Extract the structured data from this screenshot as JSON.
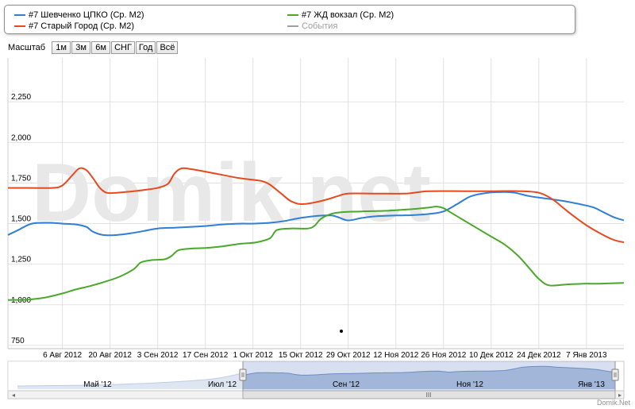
{
  "legend": {
    "items": [
      {
        "label": "#7 Шевченко ЦПКО (Ср. М2)",
        "color": "#2f7ed8"
      },
      {
        "label": "#7 Старый Город (Ср. М2)",
        "color": "#e8491d"
      },
      {
        "label": "#7 ЖД вокзал (Ср. М2)",
        "color": "#4aa82b"
      },
      {
        "label": "События",
        "color": "#a0a0a0"
      }
    ]
  },
  "zoom": {
    "label": "Масштаб",
    "buttons": [
      "1м",
      "3м",
      "6м",
      "СНГ",
      "Год",
      "Всё"
    ]
  },
  "watermark": "Domik.net",
  "credit": "Domik.Net",
  "navigator": {
    "labels": [
      "Май '12",
      "Июл '12",
      "Сен '12",
      "Ноя '12",
      "Янв '13"
    ],
    "handle_glyph": "III"
  },
  "chart_data": {
    "type": "line",
    "x_tick_labels": [
      "6 Авг 2012",
      "20 Авг 2012",
      "3 Сен 2012",
      "17 Сен 2012",
      "1 Окт 2012",
      "15 Окт 2012",
      "29 Окт 2012",
      "12 Ноя 2012",
      "26 Ноя 2012",
      "10 Дек 2012",
      "24 Дек 2012",
      "7 Янв 2013"
    ],
    "x_tick_days": [
      0,
      14,
      28,
      42,
      56,
      70,
      84,
      98,
      112,
      126,
      140,
      154
    ],
    "xlim": [
      -16,
      165
    ],
    "y_ticks": [
      750,
      1000,
      1250,
      1500,
      1750,
      2000,
      2250
    ],
    "y_tick_labels": [
      "750",
      "1,000",
      "1,250",
      "1,500",
      "1,750",
      "2,000",
      "2,250"
    ],
    "ylim": [
      730,
      2520
    ],
    "series": [
      {
        "name": "#7 Шевченко ЦПКО (Ср. М2)",
        "color": "#2f7ed8",
        "points": [
          [
            -16,
            1430
          ],
          [
            -13,
            1460
          ],
          [
            -9,
            1500
          ],
          [
            -4,
            1505
          ],
          [
            0,
            1500
          ],
          [
            4,
            1495
          ],
          [
            7,
            1480
          ],
          [
            9,
            1450
          ],
          [
            12,
            1430
          ],
          [
            16,
            1430
          ],
          [
            20,
            1440
          ],
          [
            24,
            1455
          ],
          [
            28,
            1470
          ],
          [
            33,
            1475
          ],
          [
            38,
            1480
          ],
          [
            42,
            1485
          ],
          [
            47,
            1495
          ],
          [
            52,
            1500
          ],
          [
            56,
            1500
          ],
          [
            61,
            1505
          ],
          [
            65,
            1515
          ],
          [
            70,
            1535
          ],
          [
            75,
            1548
          ],
          [
            79,
            1550
          ],
          [
            81,
            1540
          ],
          [
            84,
            1520
          ],
          [
            88,
            1535
          ],
          [
            92,
            1545
          ],
          [
            98,
            1550
          ],
          [
            103,
            1552
          ],
          [
            108,
            1560
          ],
          [
            112,
            1575
          ],
          [
            116,
            1620
          ],
          [
            120,
            1668
          ],
          [
            125,
            1690
          ],
          [
            130,
            1695
          ],
          [
            133,
            1690
          ],
          [
            137,
            1670
          ],
          [
            142,
            1655
          ],
          [
            147,
            1640
          ],
          [
            152,
            1620
          ],
          [
            156,
            1600
          ],
          [
            159,
            1570
          ],
          [
            162,
            1540
          ],
          [
            165,
            1520
          ]
        ]
      },
      {
        "name": "#7 Старый Город (Ср. М2)",
        "color": "#e8491d",
        "points": [
          [
            -16,
            1720
          ],
          [
            -10,
            1720
          ],
          [
            -3,
            1720
          ],
          [
            0,
            1735
          ],
          [
            3,
            1800
          ],
          [
            5,
            1840
          ],
          [
            7,
            1830
          ],
          [
            9,
            1780
          ],
          [
            11,
            1720
          ],
          [
            13,
            1690
          ],
          [
            16,
            1690
          ],
          [
            21,
            1700
          ],
          [
            25,
            1710
          ],
          [
            28,
            1720
          ],
          [
            31,
            1745
          ],
          [
            33,
            1810
          ],
          [
            35,
            1840
          ],
          [
            38,
            1835
          ],
          [
            42,
            1820
          ],
          [
            47,
            1800
          ],
          [
            52,
            1780
          ],
          [
            56,
            1770
          ],
          [
            59,
            1760
          ],
          [
            61,
            1740
          ],
          [
            64,
            1690
          ],
          [
            67,
            1640
          ],
          [
            70,
            1620
          ],
          [
            74,
            1630
          ],
          [
            78,
            1650
          ],
          [
            81,
            1670
          ],
          [
            84,
            1685
          ],
          [
            92,
            1685
          ],
          [
            101,
            1685
          ],
          [
            105,
            1695
          ],
          [
            108,
            1700
          ],
          [
            118,
            1700
          ],
          [
            126,
            1700
          ],
          [
            134,
            1700
          ],
          [
            140,
            1690
          ],
          [
            144,
            1650
          ],
          [
            147,
            1600
          ],
          [
            150,
            1550
          ],
          [
            154,
            1490
          ],
          [
            158,
            1440
          ],
          [
            162,
            1400
          ],
          [
            165,
            1385
          ]
        ]
      },
      {
        "name": "#7 ЖД вокзал (Ср. М2)",
        "color": "#4aa82b",
        "points": [
          [
            -16,
            1030
          ],
          [
            -10,
            1032
          ],
          [
            -5,
            1045
          ],
          [
            0,
            1070
          ],
          [
            4,
            1095
          ],
          [
            8,
            1115
          ],
          [
            13,
            1145
          ],
          [
            17,
            1175
          ],
          [
            21,
            1220
          ],
          [
            23,
            1260
          ],
          [
            26,
            1275
          ],
          [
            30,
            1280
          ],
          [
            32,
            1300
          ],
          [
            34,
            1335
          ],
          [
            37,
            1345
          ],
          [
            42,
            1350
          ],
          [
            47,
            1360
          ],
          [
            52,
            1375
          ],
          [
            57,
            1385
          ],
          [
            61,
            1410
          ],
          [
            63,
            1460
          ],
          [
            67,
            1470
          ],
          [
            72,
            1470
          ],
          [
            74,
            1485
          ],
          [
            76,
            1530
          ],
          [
            79,
            1560
          ],
          [
            82,
            1570
          ],
          [
            88,
            1575
          ],
          [
            96,
            1580
          ],
          [
            103,
            1590
          ],
          [
            108,
            1600
          ],
          [
            110,
            1605
          ],
          [
            112,
            1595
          ],
          [
            114,
            1570
          ],
          [
            118,
            1520
          ],
          [
            122,
            1470
          ],
          [
            126,
            1420
          ],
          [
            130,
            1370
          ],
          [
            134,
            1300
          ],
          [
            137,
            1230
          ],
          [
            140,
            1160
          ],
          [
            143,
            1120
          ],
          [
            148,
            1125
          ],
          [
            153,
            1130
          ],
          [
            158,
            1130
          ],
          [
            165,
            1135
          ]
        ]
      }
    ],
    "navigator_fill": "#b4c7e0",
    "navigator_line": "#6d8fc4"
  }
}
